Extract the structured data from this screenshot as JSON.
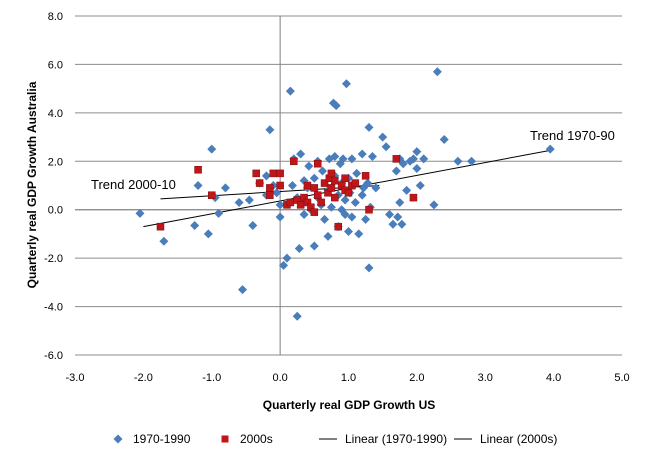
{
  "chart_data": {
    "type": "scatter",
    "title": "",
    "xlabel": "Quarterly real GDP Growth US",
    "ylabel": "Quarterly real GDP Growth Australia",
    "xlim": [
      -3.0,
      5.0
    ],
    "ylim": [
      -6.0,
      8.0
    ],
    "x_ticks": [
      -3.0,
      -2.0,
      -1.0,
      0.0,
      1.0,
      2.0,
      3.0,
      4.0,
      5.0
    ],
    "y_ticks": [
      -6.0,
      -4.0,
      -2.0,
      0.0,
      2.0,
      4.0,
      6.0,
      8.0
    ],
    "x_tick_labels": [
      "-3.0",
      "-2.0",
      "-1.0",
      "0.0",
      "1.0",
      "2.0",
      "3.0",
      "4.0",
      "5.0"
    ],
    "y_tick_labels": [
      "-6.0",
      "-4.0",
      "-2.0",
      "0.0",
      "2.0",
      "4.0",
      "6.0",
      "8.0"
    ],
    "grid": "horizontal",
    "legend_position": "bottom",
    "annotations": {
      "trend_1970_90": "Trend 1970-90",
      "trend_2000_10": "Trend 2000-10"
    },
    "series": [
      {
        "name": "1970-1990",
        "marker": "diamond",
        "color": "#4a7ebb",
        "points": [
          [
            -2.05,
            -0.15
          ],
          [
            -1.7,
            -1.3
          ],
          [
            -1.25,
            -0.65
          ],
          [
            -1.2,
            1.0
          ],
          [
            -1.05,
            -1.0
          ],
          [
            -1.0,
            2.5
          ],
          [
            -0.95,
            0.5
          ],
          [
            -0.9,
            -0.15
          ],
          [
            -0.8,
            0.9
          ],
          [
            -0.6,
            0.3
          ],
          [
            -0.55,
            -3.3
          ],
          [
            -0.45,
            0.4
          ],
          [
            -0.4,
            -0.65
          ],
          [
            -0.3,
            1.1
          ],
          [
            -0.2,
            0.6
          ],
          [
            -0.15,
            3.3
          ],
          [
            -0.2,
            1.4
          ],
          [
            -0.1,
            1.0
          ],
          [
            -0.05,
            0.7
          ],
          [
            0.0,
            -0.3
          ],
          [
            0.0,
            0.2
          ],
          [
            0.05,
            -2.3
          ],
          [
            0.1,
            -2.0
          ],
          [
            0.15,
            4.9
          ],
          [
            0.18,
            1.0
          ],
          [
            0.2,
            2.1
          ],
          [
            0.25,
            0.5
          ],
          [
            0.25,
            -4.4
          ],
          [
            0.28,
            -1.6
          ],
          [
            0.3,
            0.3
          ],
          [
            0.3,
            2.3
          ],
          [
            0.35,
            1.2
          ],
          [
            0.35,
            -0.2
          ],
          [
            0.4,
            0.9
          ],
          [
            0.42,
            1.8
          ],
          [
            0.45,
            0.0
          ],
          [
            0.5,
            1.3
          ],
          [
            0.5,
            -1.5
          ],
          [
            0.55,
            0.5
          ],
          [
            0.55,
            2.0
          ],
          [
            0.6,
            0.2
          ],
          [
            0.62,
            1.6
          ],
          [
            0.65,
            -0.4
          ],
          [
            0.7,
            0.8
          ],
          [
            0.7,
            -1.1
          ],
          [
            0.72,
            2.1
          ],
          [
            0.75,
            0.1
          ],
          [
            0.78,
            4.4
          ],
          [
            0.8,
            1.4
          ],
          [
            0.8,
            2.2
          ],
          [
            0.82,
            4.3
          ],
          [
            0.85,
            0.6
          ],
          [
            0.85,
            -0.7
          ],
          [
            0.88,
            1.9
          ],
          [
            0.9,
            0.0
          ],
          [
            0.9,
            1.1
          ],
          [
            0.92,
            2.1
          ],
          [
            0.95,
            0.4
          ],
          [
            0.95,
            -0.2
          ],
          [
            0.97,
            5.2
          ],
          [
            1.0,
            1.3
          ],
          [
            1.0,
            -0.9
          ],
          [
            1.02,
            0.7
          ],
          [
            1.05,
            2.1
          ],
          [
            1.05,
            -0.3
          ],
          [
            1.08,
            1.0
          ],
          [
            1.1,
            0.3
          ],
          [
            1.12,
            1.5
          ],
          [
            1.15,
            -1.0
          ],
          [
            1.2,
            0.6
          ],
          [
            1.2,
            2.3
          ],
          [
            1.22,
            0.9
          ],
          [
            1.25,
            -0.4
          ],
          [
            1.28,
            1.1
          ],
          [
            1.3,
            3.4
          ],
          [
            1.3,
            -2.4
          ],
          [
            1.32,
            0.1
          ],
          [
            1.35,
            2.2
          ],
          [
            1.4,
            0.9
          ],
          [
            1.5,
            3.0
          ],
          [
            1.55,
            2.6
          ],
          [
            1.6,
            -0.2
          ],
          [
            1.65,
            -0.6
          ],
          [
            1.7,
            1.6
          ],
          [
            1.72,
            -0.3
          ],
          [
            1.75,
            0.3
          ],
          [
            1.75,
            2.1
          ],
          [
            1.78,
            -0.6
          ],
          [
            1.8,
            1.9
          ],
          [
            1.85,
            0.8
          ],
          [
            1.9,
            2.0
          ],
          [
            1.95,
            2.1
          ],
          [
            2.0,
            2.4
          ],
          [
            2.0,
            1.7
          ],
          [
            2.05,
            1.0
          ],
          [
            2.1,
            2.1
          ],
          [
            2.25,
            0.2
          ],
          [
            2.3,
            5.7
          ],
          [
            2.4,
            2.9
          ],
          [
            2.6,
            2.0
          ],
          [
            2.8,
            2.0
          ],
          [
            3.95,
            2.5
          ]
        ]
      },
      {
        "name": "2000s",
        "marker": "square",
        "color": "#c0161a",
        "points": [
          [
            -1.75,
            -0.7
          ],
          [
            -1.2,
            1.65
          ],
          [
            -1.0,
            0.6
          ],
          [
            -0.35,
            1.5
          ],
          [
            -0.3,
            1.1
          ],
          [
            -0.15,
            0.9
          ],
          [
            -0.15,
            0.6
          ],
          [
            -0.1,
            1.5
          ],
          [
            0.0,
            1.5
          ],
          [
            0.0,
            1.0
          ],
          [
            0.1,
            0.2
          ],
          [
            0.15,
            0.3
          ],
          [
            0.2,
            2.0
          ],
          [
            0.25,
            0.4
          ],
          [
            0.3,
            0.2
          ],
          [
            0.35,
            0.5
          ],
          [
            0.4,
            0.3
          ],
          [
            0.4,
            1.0
          ],
          [
            0.45,
            0.1
          ],
          [
            0.5,
            -0.1
          ],
          [
            0.5,
            0.9
          ],
          [
            0.55,
            1.9
          ],
          [
            0.55,
            0.6
          ],
          [
            0.6,
            0.3
          ],
          [
            0.65,
            1.1
          ],
          [
            0.7,
            0.7
          ],
          [
            0.72,
            1.3
          ],
          [
            0.75,
            0.9
          ],
          [
            0.75,
            1.5
          ],
          [
            0.8,
            0.5
          ],
          [
            0.8,
            1.2
          ],
          [
            0.85,
            -0.7
          ],
          [
            0.9,
            1.0
          ],
          [
            0.95,
            0.8
          ],
          [
            0.95,
            1.3
          ],
          [
            1.0,
            0.7
          ],
          [
            1.05,
            1.0
          ],
          [
            1.1,
            1.1
          ],
          [
            1.25,
            1.4
          ],
          [
            1.3,
            0.0
          ],
          [
            1.7,
            2.1
          ],
          [
            1.95,
            0.5
          ]
        ]
      }
    ],
    "trend_lines": [
      {
        "name": "Linear (1970-1990)",
        "x": [
          -2.0,
          3.95
        ],
        "y": [
          -0.7,
          2.45
        ],
        "color": "#000000"
      },
      {
        "name": "Linear (2000s)",
        "x": [
          -1.75,
          1.45
        ],
        "y": [
          0.45,
          1.0
        ],
        "color": "#000000"
      }
    ],
    "legend": [
      {
        "label": "1970-1990",
        "kind": "diamond",
        "color": "#4a7ebb"
      },
      {
        "label": "2000s",
        "kind": "square",
        "color": "#c0161a"
      },
      {
        "label": "Linear (1970-1990)",
        "kind": "line",
        "color": "#000000"
      },
      {
        "label": "Linear (2000s)",
        "kind": "line",
        "color": "#000000"
      }
    ]
  }
}
